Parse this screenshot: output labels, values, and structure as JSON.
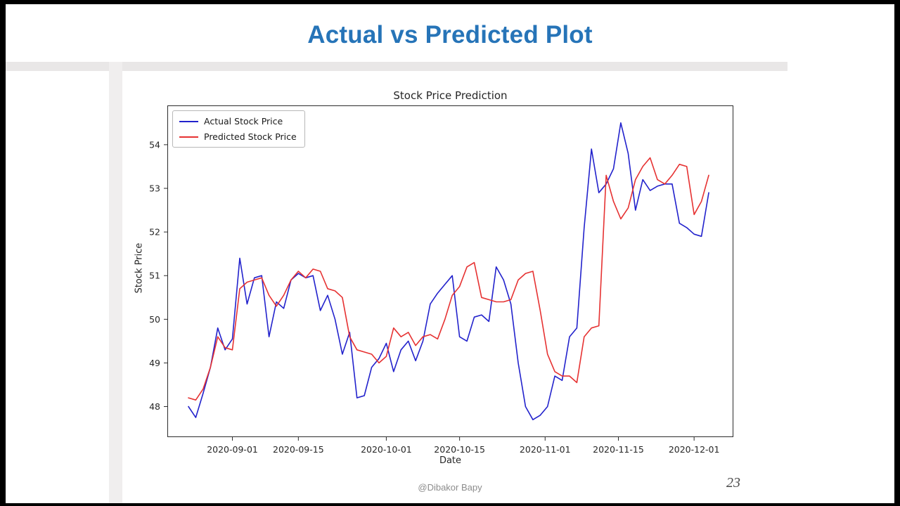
{
  "slide": {
    "title": "Actual vs Predicted Plot",
    "footer": "@Dibakor Bapy",
    "page_number": "23"
  },
  "colors": {
    "title_blue": "#2674B8",
    "actual_line": "#2222CC",
    "predicted_line": "#E63232"
  },
  "chart_data": {
    "type": "line",
    "title": "Stock Price Prediction",
    "xlabel": "Date",
    "ylabel": "Stock Price",
    "ylim": [
      47.3,
      54.9
    ],
    "grid": false,
    "legend_position": "upper left",
    "x": [
      "2020-08-24",
      "2020-08-25",
      "2020-08-26",
      "2020-08-27",
      "2020-08-28",
      "2020-08-31",
      "2020-09-01",
      "2020-09-02",
      "2020-09-03",
      "2020-09-04",
      "2020-09-08",
      "2020-09-09",
      "2020-09-10",
      "2020-09-11",
      "2020-09-14",
      "2020-09-15",
      "2020-09-16",
      "2020-09-17",
      "2020-09-18",
      "2020-09-21",
      "2020-09-22",
      "2020-09-23",
      "2020-09-24",
      "2020-09-25",
      "2020-09-28",
      "2020-09-29",
      "2020-09-30",
      "2020-10-01",
      "2020-10-02",
      "2020-10-05",
      "2020-10-06",
      "2020-10-07",
      "2020-10-08",
      "2020-10-09",
      "2020-10-12",
      "2020-10-13",
      "2020-10-14",
      "2020-10-15",
      "2020-10-16",
      "2020-10-19",
      "2020-10-20",
      "2020-10-21",
      "2020-10-22",
      "2020-10-23",
      "2020-10-26",
      "2020-10-27",
      "2020-10-28",
      "2020-10-29",
      "2020-10-30",
      "2020-11-02",
      "2020-11-03",
      "2020-11-04",
      "2020-11-05",
      "2020-11-06",
      "2020-11-09",
      "2020-11-10",
      "2020-11-11",
      "2020-11-12",
      "2020-11-13",
      "2020-11-16",
      "2020-11-17",
      "2020-11-18",
      "2020-11-19",
      "2020-11-20",
      "2020-11-23",
      "2020-11-24",
      "2020-11-25",
      "2020-11-27",
      "2020-11-30",
      "2020-12-01",
      "2020-12-02",
      "2020-12-03"
    ],
    "x_ticks": [
      {
        "label": "2020-09-01",
        "index": 6
      },
      {
        "label": "2020-09-15",
        "index": 15
      },
      {
        "label": "2020-10-01",
        "index": 27
      },
      {
        "label": "2020-10-15",
        "index": 37
      },
      {
        "label": "2020-11-01",
        "index": 48.67
      },
      {
        "label": "2020-11-15",
        "index": 58.67
      },
      {
        "label": "2020-12-01",
        "index": 69
      }
    ],
    "y_ticks": [
      48,
      49,
      50,
      51,
      52,
      53,
      54
    ],
    "series": [
      {
        "name": "Actual Stock Price",
        "color": "#2222CC",
        "values": [
          48.0,
          47.75,
          48.3,
          48.9,
          49.8,
          49.3,
          49.55,
          51.4,
          50.35,
          50.95,
          51.0,
          49.6,
          50.4,
          50.25,
          50.9,
          51.05,
          50.95,
          51.0,
          50.2,
          50.55,
          50.0,
          49.2,
          49.7,
          48.2,
          48.25,
          48.9,
          49.1,
          49.45,
          48.8,
          49.3,
          49.5,
          49.05,
          49.5,
          50.35,
          50.6,
          50.8,
          51.0,
          49.6,
          49.5,
          50.05,
          50.1,
          49.95,
          51.2,
          50.9,
          50.35,
          49.0,
          48.0,
          47.7,
          47.8,
          48.0,
          48.7,
          48.6,
          49.6,
          49.8,
          52.1,
          53.9,
          52.9,
          53.1,
          53.45,
          54.5,
          53.8,
          52.5,
          53.2,
          52.95,
          53.05,
          53.1,
          53.1,
          52.2,
          52.1,
          51.95,
          51.9,
          52.9
        ]
      },
      {
        "name": "Predicted Stock Price",
        "color": "#E63232",
        "values": [
          48.2,
          48.15,
          48.4,
          48.9,
          49.6,
          49.35,
          49.3,
          50.7,
          50.85,
          50.9,
          50.95,
          50.55,
          50.3,
          50.55,
          50.9,
          51.1,
          50.95,
          51.15,
          51.1,
          50.7,
          50.65,
          50.5,
          49.6,
          49.3,
          49.25,
          49.2,
          49.0,
          49.15,
          49.8,
          49.6,
          49.7,
          49.4,
          49.6,
          49.65,
          49.55,
          50.0,
          50.55,
          50.75,
          51.2,
          51.3,
          50.5,
          50.45,
          50.4,
          50.4,
          50.45,
          50.9,
          51.05,
          51.1,
          50.2,
          49.2,
          48.8,
          48.7,
          48.7,
          48.55,
          49.6,
          49.8,
          49.85,
          53.3,
          52.7,
          52.3,
          52.55,
          53.2,
          53.5,
          53.7,
          53.2,
          53.1,
          53.3,
          53.55,
          53.5,
          52.4,
          52.7,
          53.3
        ]
      }
    ]
  }
}
